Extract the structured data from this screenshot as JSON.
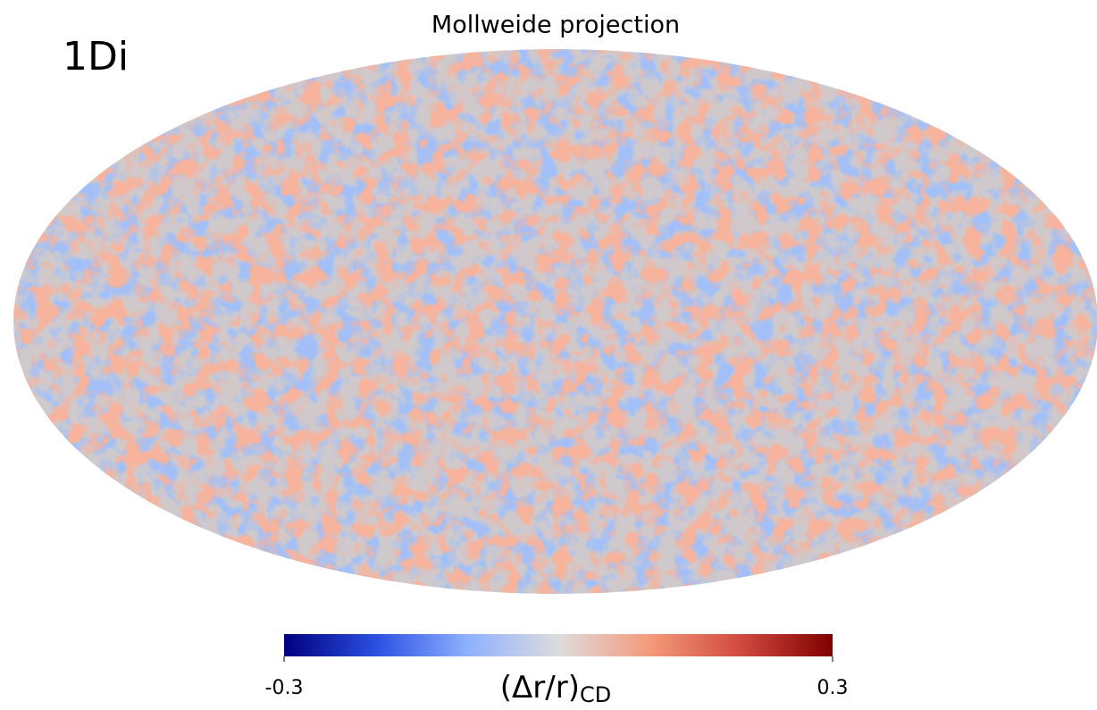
{
  "chart_data": {
    "type": "mollweide",
    "title": "Mollweide projection",
    "panel_label": "1Di",
    "colorbar": {
      "label": "(Δr/r)",
      "label_subscript": "CD",
      "lim": [
        -0.3,
        0.3
      ],
      "ticks": [
        -0.3,
        0.3
      ],
      "colors": [
        "#00007f",
        "#2a4fe0",
        "#8db0fe",
        "#dddcdc",
        "#f49a7b",
        "#d1493f",
        "#7f0000"
      ]
    }
  }
}
